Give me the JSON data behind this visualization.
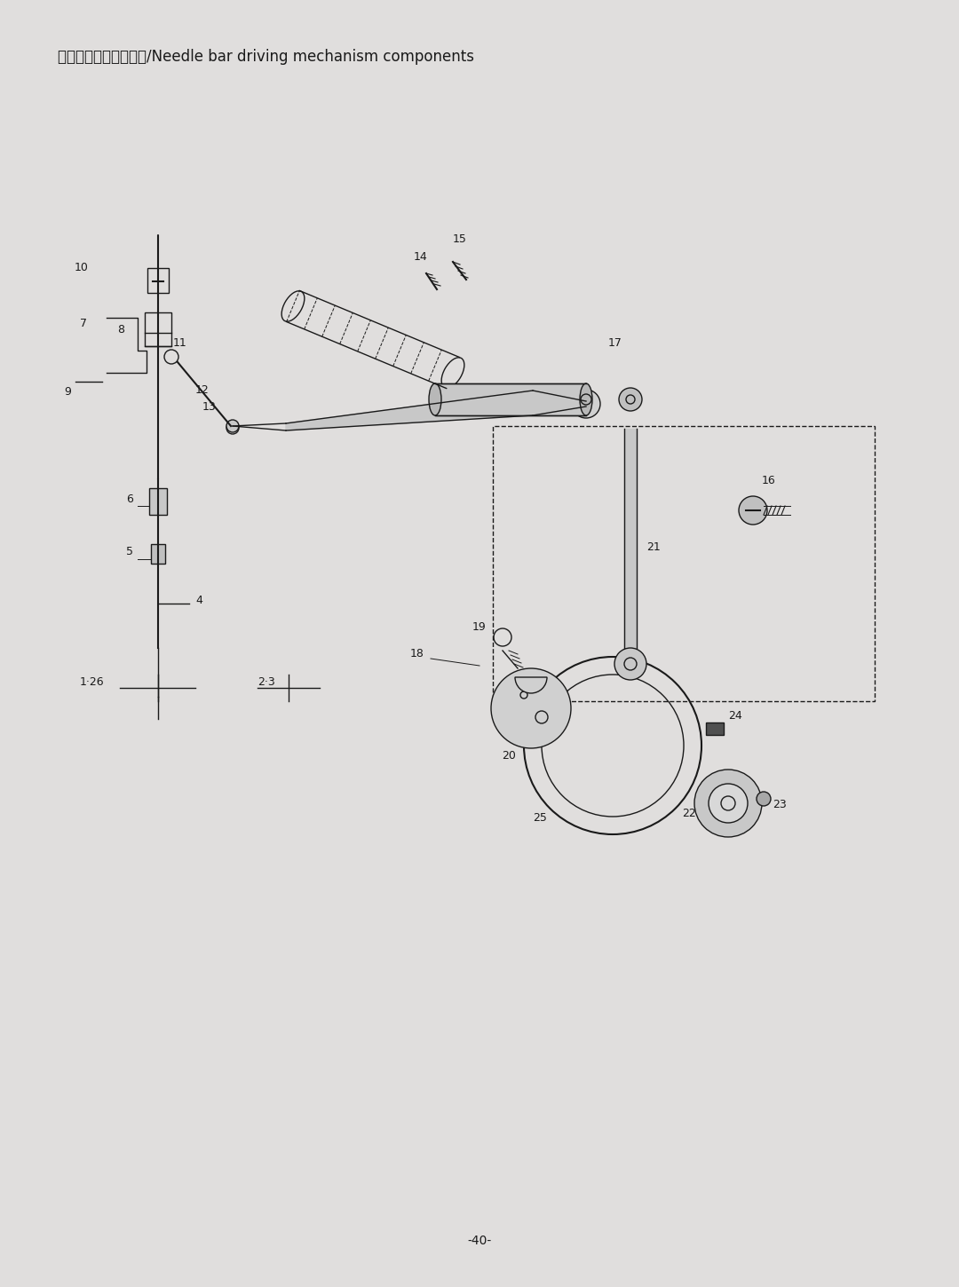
{
  "title": "八、针杆驱动机构部件/Needle bar driving mechanism components",
  "page_number": "-40-",
  "bg_color": "#d8d8d8",
  "paper_color": "#e0dedd",
  "line_color": "#1a1a1a",
  "text_color": "#1a1a1a",
  "title_fontsize": 12,
  "page_num_fontsize": 10,
  "label_fontsize": 9,
  "fig_width": 10.8,
  "fig_height": 14.5
}
